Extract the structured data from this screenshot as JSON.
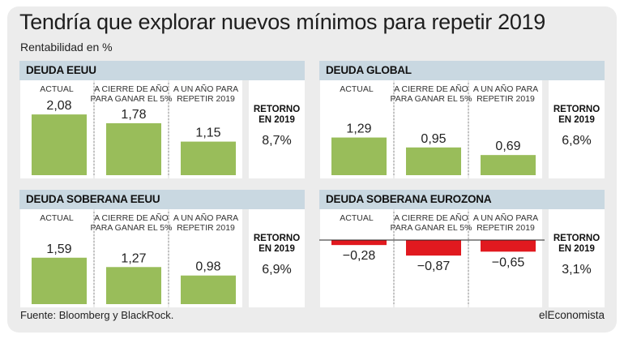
{
  "title": "Tendría que explorar nuevos mínimos para repetir 2019",
  "subtitle": "Rentabilidad en %",
  "footer": {
    "source": "Fuente: Bloomberg y BlackRock.",
    "brand": "elEconomista"
  },
  "colors": {
    "positive": "#99bd5a",
    "negative": "#e1191f",
    "header": "#c9d8e1",
    "background": "#ececec"
  },
  "chart_data": [
    {
      "type": "bar",
      "title": "DEUDA EEUU",
      "categories": [
        "ACTUAL",
        "A CIERRE DE AÑO PARA GANAR EL 5%",
        "A UN AÑO PARA REPETIR 2019"
      ],
      "category_lines": [
        [
          "ACTUAL"
        ],
        [
          "A CIERRE DE AÑO",
          "PARA GANAR EL 5%"
        ],
        [
          "A UN AÑO PARA",
          "REPETIR 2019"
        ]
      ],
      "values": [
        2.08,
        1.78,
        1.15
      ],
      "value_labels": [
        "2,08",
        "1,78",
        "1,15"
      ],
      "return_label": [
        "RETORNO",
        "EN 2019"
      ],
      "return_value": "8,7%"
    },
    {
      "type": "bar",
      "title": "DEUDA GLOBAL",
      "categories": [
        "ACTUAL",
        "A CIERRE DE AÑO PARA GANAR EL 5%",
        "A UN AÑO PARA REPETIR 2019"
      ],
      "category_lines": [
        [
          "ACTUAL"
        ],
        [
          "A CIERRE DE AÑO",
          "PARA GANAR EL 5%"
        ],
        [
          "A UN AÑO PARA",
          "REPETIR 2019"
        ]
      ],
      "values": [
        1.29,
        0.95,
        0.69
      ],
      "value_labels": [
        "1,29",
        "0,95",
        "0,69"
      ],
      "return_label": [
        "RETORNO",
        "EN 2019"
      ],
      "return_value": "6,8%"
    },
    {
      "type": "bar",
      "title": "DEUDA SOBERANA EEUU",
      "categories": [
        "ACTUAL",
        "A CIERRE DE AÑO PARA GANAR EL 5%",
        "A UN AÑO PARA REPETIR 2019"
      ],
      "category_lines": [
        [
          "ACTUAL"
        ],
        [
          "A CIERRE DE AÑO",
          "PARA GANAR EL 5%"
        ],
        [
          "A UN AÑO PARA",
          "REPETIR 2019"
        ]
      ],
      "values": [
        1.59,
        1.27,
        0.98
      ],
      "value_labels": [
        "1,59",
        "1,27",
        "0,98"
      ],
      "return_label": [
        "RETORNO",
        "EN 2019"
      ],
      "return_value": "6,9%"
    },
    {
      "type": "bar",
      "title": "DEUDA SOBERANA EUROZONA",
      "categories": [
        "ACTUAL",
        "A CIERRE DE AÑO PARA GANAR EL 5%",
        "A UN AÑO PARA REPETIR 2019"
      ],
      "category_lines": [
        [
          "ACTUAL"
        ],
        [
          "A CIERRE DE AÑO",
          "PARA GANAR EL 5%"
        ],
        [
          "A UN AÑO PARA",
          "REPETIR 2019"
        ]
      ],
      "values": [
        -0.28,
        -0.87,
        -0.65
      ],
      "value_labels": [
        "−0,28",
        "−0,87",
        "−0,65"
      ],
      "return_label": [
        "RETORNO",
        "EN 2019"
      ],
      "return_value": "3,1%"
    }
  ]
}
